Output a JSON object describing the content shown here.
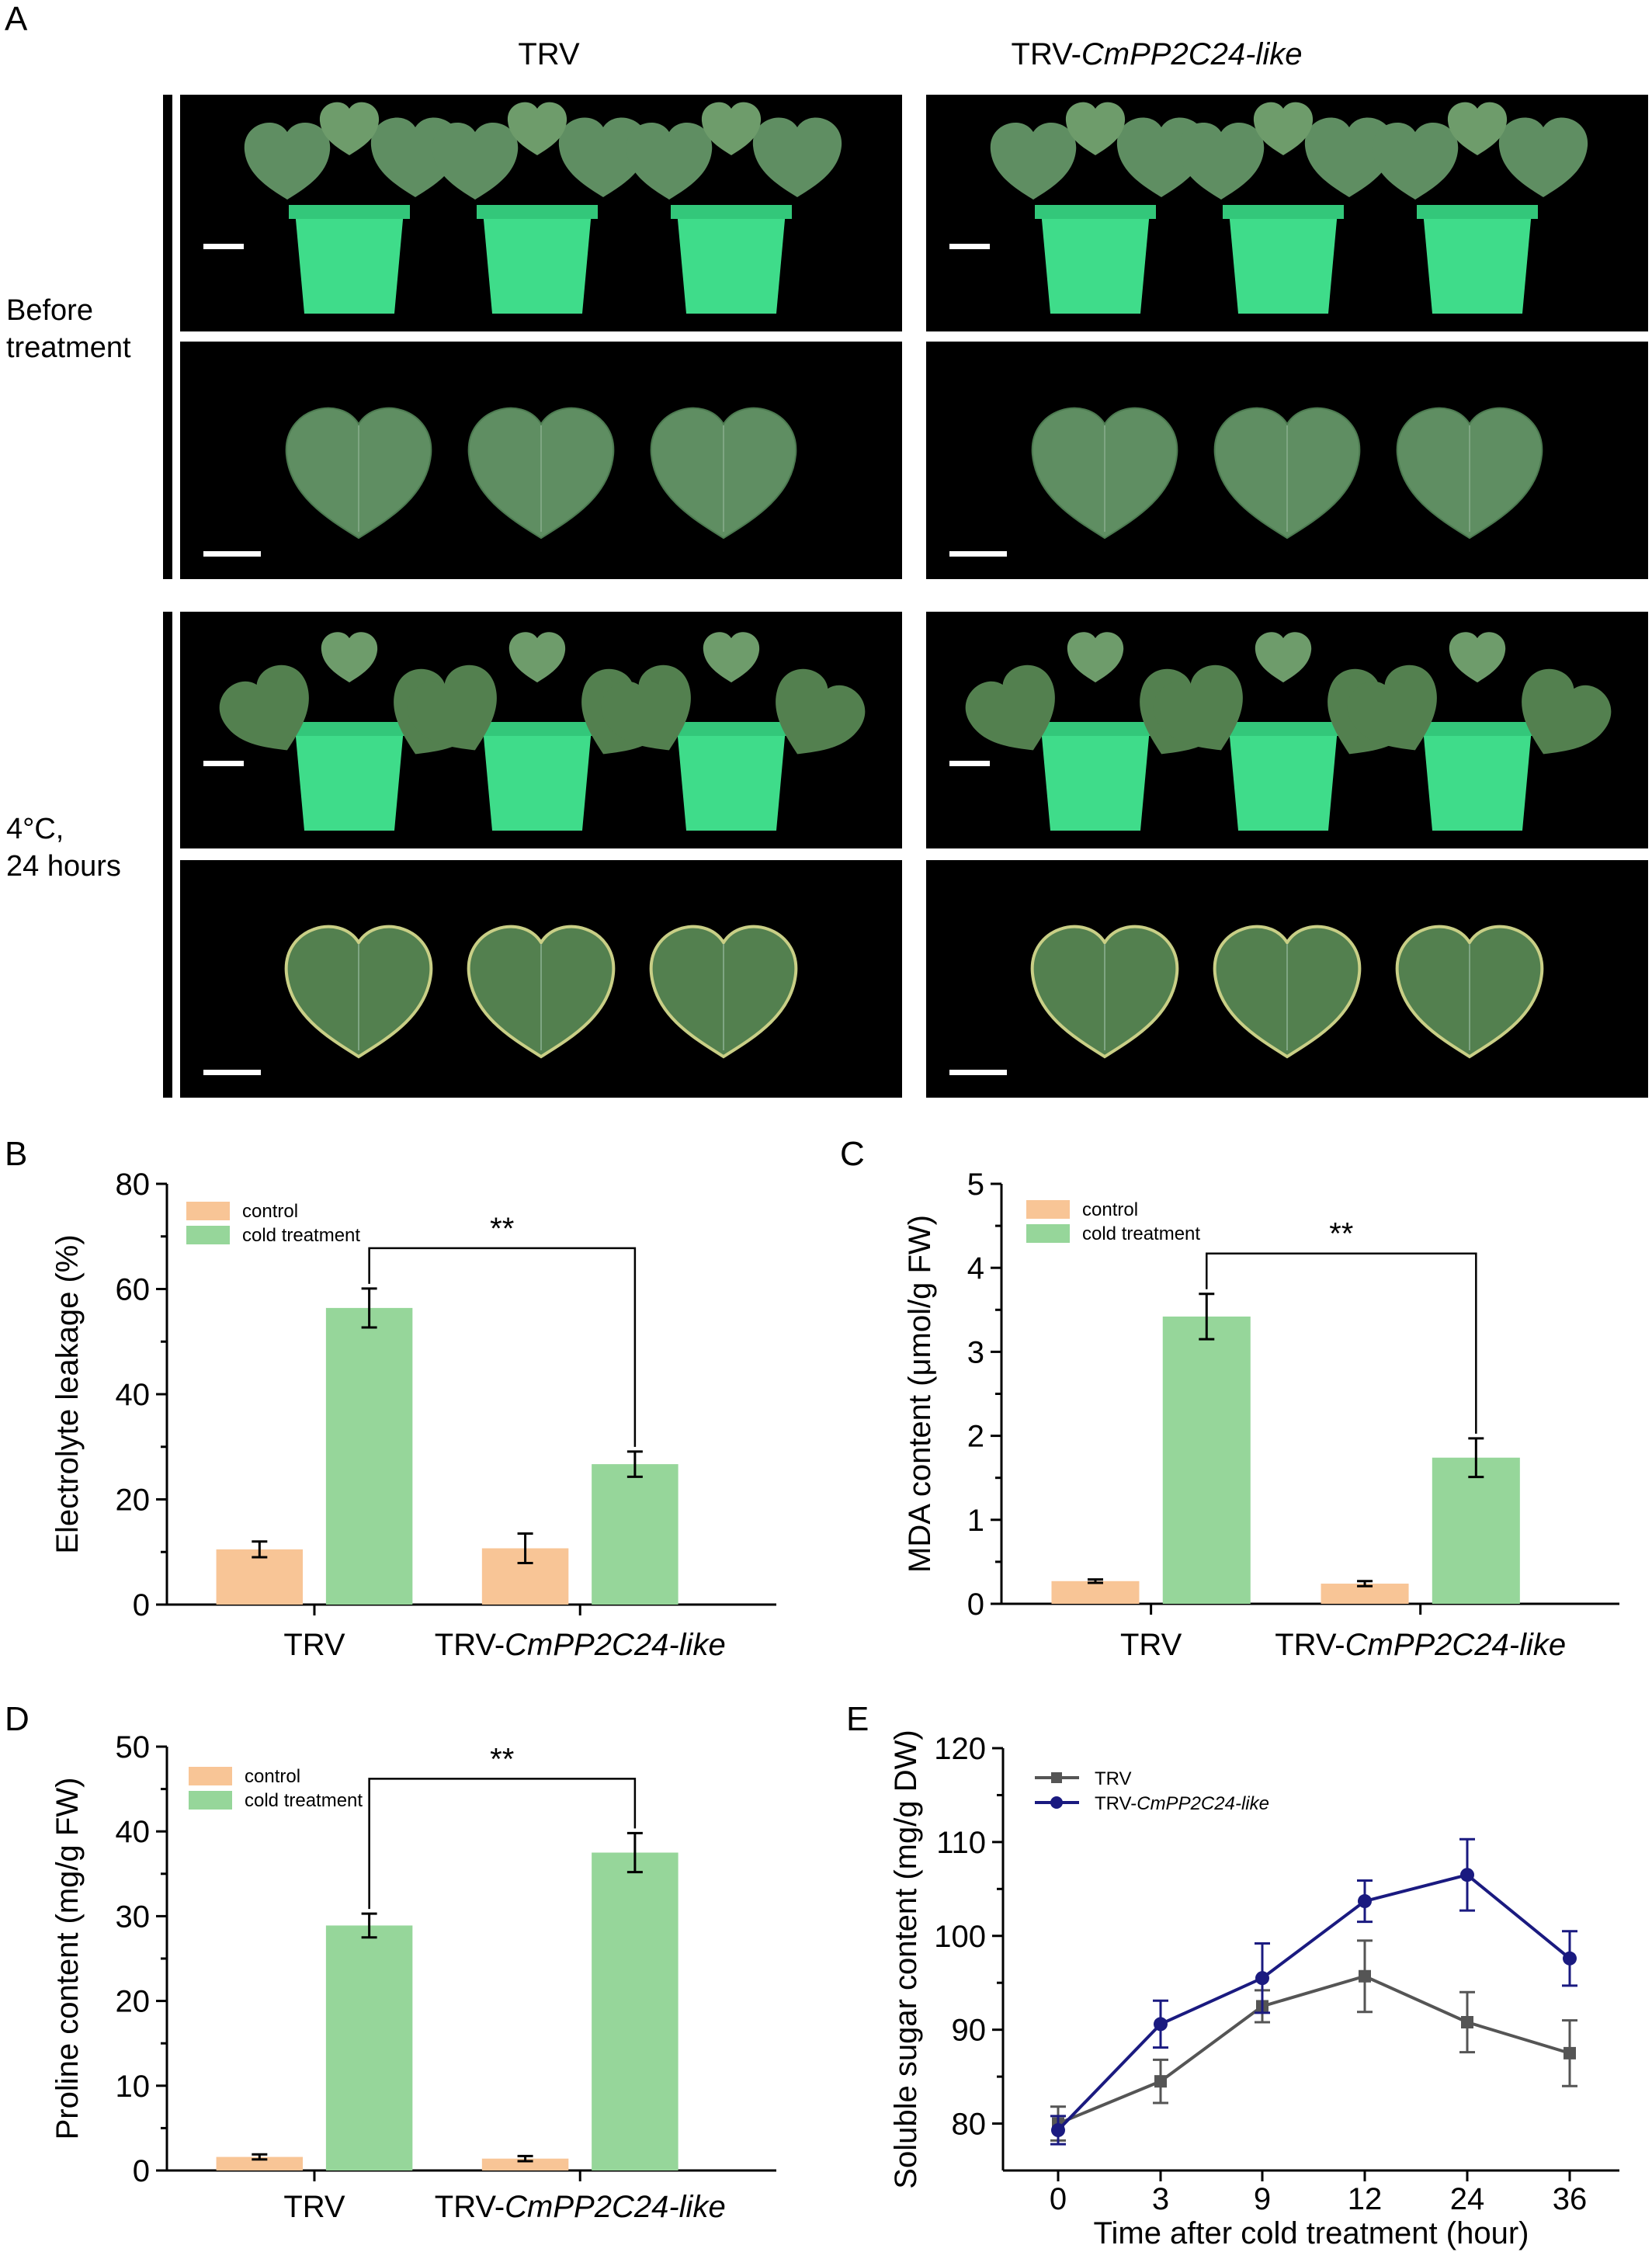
{
  "panel_a": {
    "letter": "A",
    "columns": {
      "trv": {
        "label": "TRV"
      },
      "silenced": {
        "prefix": "TRV-",
        "gene": "CmPP2C24-like"
      }
    },
    "rows": {
      "before": {
        "line1": "Before",
        "line2": "treatment"
      },
      "cold": {
        "line1": "4°C,",
        "line2": "24 hours"
      }
    },
    "colors": {
      "plant_leaf": "#5f8e62",
      "pot": "#3fdc8a",
      "background": "#000000",
      "scale_bar": "#ffffff"
    }
  },
  "chart_data": [
    {
      "panel": "B",
      "type": "bar",
      "categories": [
        "TRV",
        "TRV-CmPP2C24-like"
      ],
      "category_display": [
        {
          "plain": "TRV",
          "italic": ""
        },
        {
          "plain": "TRV-",
          "italic": "CmPP2C24-like"
        }
      ],
      "ylabel": "Electrolyte leakage (%)",
      "ylim": [
        0,
        80
      ],
      "yticks": [
        0,
        20,
        40,
        60,
        80
      ],
      "series": [
        {
          "name": "control",
          "color": "#f8c596",
          "values": [
            10.5,
            10.7
          ],
          "errors": [
            1.5,
            2.8
          ]
        },
        {
          "name": "cold treatment",
          "color": "#96d69a",
          "values": [
            56.4,
            26.7
          ],
          "errors": [
            3.7,
            2.4
          ]
        }
      ],
      "significance": {
        "label": "**",
        "between": [
          [
            0,
            1
          ],
          [
            1,
            1
          ]
        ]
      },
      "legend": "top-left"
    },
    {
      "panel": "C",
      "type": "bar",
      "categories": [
        "TRV",
        "TRV-CmPP2C24-like"
      ],
      "category_display": [
        {
          "plain": "TRV",
          "italic": ""
        },
        {
          "plain": "TRV-",
          "italic": "CmPP2C24-like"
        }
      ],
      "ylabel": "MDA content (μmol/g FW)",
      "ylim": [
        0,
        5
      ],
      "yticks": [
        0,
        1,
        2,
        3,
        4,
        5
      ],
      "series": [
        {
          "name": "control",
          "color": "#f8c596",
          "values": [
            0.27,
            0.24
          ],
          "errors": [
            0.02,
            0.03
          ]
        },
        {
          "name": "cold treatment",
          "color": "#96d69a",
          "values": [
            3.42,
            1.74
          ],
          "errors": [
            0.27,
            0.23
          ]
        }
      ],
      "significance": {
        "label": "**",
        "between": [
          [
            0,
            1
          ],
          [
            1,
            1
          ]
        ]
      },
      "legend": "top-left"
    },
    {
      "panel": "D",
      "type": "bar",
      "categories": [
        "TRV",
        "TRV-CmPP2C24-like"
      ],
      "category_display": [
        {
          "plain": "TRV",
          "italic": ""
        },
        {
          "plain": "TRV-",
          "italic": "CmPP2C24-like"
        }
      ],
      "ylabel": "Proline content (mg/g FW)",
      "ylim": [
        0,
        50
      ],
      "yticks": [
        0,
        10,
        20,
        30,
        40,
        50
      ],
      "series": [
        {
          "name": "control",
          "color": "#f8c596",
          "values": [
            1.6,
            1.4
          ],
          "errors": [
            0.3,
            0.3
          ]
        },
        {
          "name": "cold treatment",
          "color": "#96d69a",
          "values": [
            28.9,
            37.5
          ],
          "errors": [
            1.4,
            2.3
          ]
        }
      ],
      "significance": {
        "label": "**",
        "between": [
          [
            0,
            1
          ],
          [
            1,
            1
          ]
        ]
      },
      "legend": "top-left"
    },
    {
      "panel": "E",
      "type": "line",
      "x": [
        "0",
        "3",
        "9",
        "12",
        "24",
        "36"
      ],
      "xlabel": "Time after cold treatment (hour)",
      "ylabel": "Soluble sugar content (mg/g DW)",
      "ylim": [
        75,
        120
      ],
      "yticks": [
        80,
        90,
        100,
        110,
        120
      ],
      "series": [
        {
          "name": "TRV",
          "name_display": {
            "plain": "TRV",
            "italic": ""
          },
          "color": "#555555",
          "marker": "square",
          "values": [
            80.0,
            84.5,
            92.5,
            95.7,
            90.8,
            87.5
          ],
          "errors": [
            1.8,
            2.3,
            1.7,
            3.8,
            3.2,
            3.5
          ]
        },
        {
          "name": "TRV-CmPP2C24-like",
          "name_display": {
            "plain": "TRV-",
            "italic": "CmPP2C24-like"
          },
          "color": "#1a1a80",
          "marker": "circle",
          "values": [
            79.3,
            90.6,
            95.5,
            103.7,
            106.5,
            97.6
          ],
          "errors": [
            1.5,
            2.5,
            3.7,
            2.2,
            3.8,
            2.9
          ]
        }
      ],
      "legend": "top-left"
    }
  ]
}
